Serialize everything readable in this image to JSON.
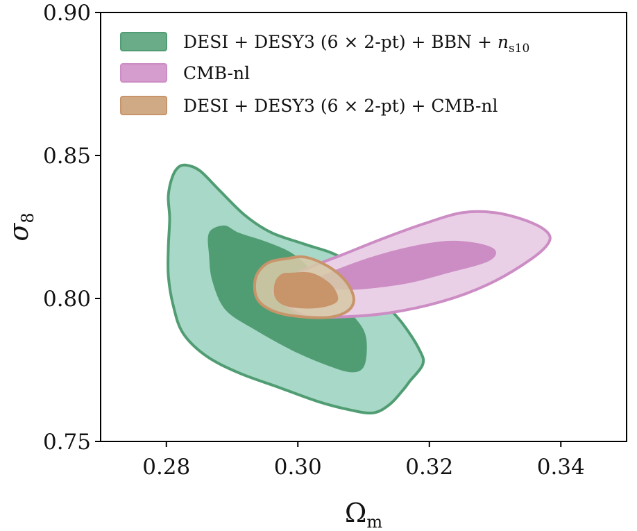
{
  "chart_data": {
    "type": "contour",
    "xlabel": "Ωm",
    "ylabel": "σ8",
    "xlim": [
      0.27,
      0.35
    ],
    "ylim": [
      0.75,
      0.9
    ],
    "xticks": [
      "0.28",
      "0.30",
      "0.32",
      "0.34"
    ],
    "yticks": [
      "0.75",
      "0.80",
      "0.85",
      "0.90"
    ],
    "legend_position": "upper-left",
    "series": [
      {
        "name": "DESI + DESY3 (6 × 2-pt) + BBN + ns10",
        "legend_main": "DESI + DESY3 (6 × 2-pt) + BBN + ",
        "legend_math": "n",
        "legend_sub": "s10",
        "color": "#519d73",
        "inner_color": "#519d73",
        "outer_fill": "#a8d8c8",
        "stroke": "#519d73",
        "contours": {
          "outer": [
            [
              0.2833,
              0.8465
            ],
            [
              0.2852,
              0.8445
            ],
            [
              0.288,
              0.838
            ],
            [
              0.292,
              0.829
            ],
            [
              0.296,
              0.823
            ],
            [
              0.301,
              0.819
            ],
            [
              0.306,
              0.815
            ],
            [
              0.31,
              0.808
            ],
            [
              0.313,
              0.799
            ],
            [
              0.316,
              0.791
            ],
            [
              0.3185,
              0.782
            ],
            [
              0.319,
              0.777
            ],
            [
              0.317,
              0.771
            ],
            [
              0.316,
              0.768
            ],
            [
              0.314,
              0.763
            ],
            [
              0.3115,
              0.76
            ],
            [
              0.308,
              0.761
            ],
            [
              0.303,
              0.764
            ],
            [
              0.297,
              0.769
            ],
            [
              0.291,
              0.774
            ],
            [
              0.286,
              0.78
            ],
            [
              0.2825,
              0.788
            ],
            [
              0.281,
              0.798
            ],
            [
              0.2803,
              0.808
            ],
            [
              0.2803,
              0.818
            ],
            [
              0.2805,
              0.828
            ],
            [
              0.2803,
              0.836
            ],
            [
              0.281,
              0.843
            ],
            [
              0.282,
              0.8462
            ]
          ],
          "inner": [
            [
              0.2888,
              0.8255
            ],
            [
              0.291,
              0.823
            ],
            [
              0.295,
              0.82
            ],
            [
              0.299,
              0.816
            ],
            [
              0.302,
              0.81
            ],
            [
              0.305,
              0.802
            ],
            [
              0.308,
              0.795
            ],
            [
              0.31,
              0.789
            ],
            [
              0.3105,
              0.783
            ],
            [
              0.31,
              0.776
            ],
            [
              0.308,
              0.7742
            ],
            [
              0.304,
              0.777
            ],
            [
              0.299,
              0.782
            ],
            [
              0.2935,
              0.789
            ],
            [
              0.289,
              0.796
            ],
            [
              0.287,
              0.806
            ],
            [
              0.2865,
              0.815
            ],
            [
              0.2865,
              0.823
            ]
          ]
        }
      },
      {
        "name": "CMB-nl",
        "legend_main": "CMB-nl",
        "color": "#cc8cc4",
        "inner_color": "#cc8cc4",
        "outer_fill": "#ead0e6",
        "stroke": "#cc8cc4",
        "contours": {
          "outer": [
            [
              0.297,
              0.804
            ],
            [
              0.301,
              0.81
            ],
            [
              0.307,
              0.8155
            ],
            [
              0.313,
              0.821
            ],
            [
              0.319,
              0.826
            ],
            [
              0.325,
              0.83
            ],
            [
              0.33,
              0.83
            ],
            [
              0.335,
              0.827
            ],
            [
              0.338,
              0.823
            ],
            [
              0.338,
              0.819
            ],
            [
              0.335,
              0.813
            ],
            [
              0.329,
              0.805
            ],
            [
              0.322,
              0.799
            ],
            [
              0.314,
              0.795
            ],
            [
              0.306,
              0.7935
            ],
            [
              0.301,
              0.794
            ],
            [
              0.298,
              0.798
            ],
            [
              0.2963,
              0.802
            ]
          ],
          "inner": [
            [
              0.302,
              0.806
            ],
            [
              0.308,
              0.812
            ],
            [
              0.315,
              0.817
            ],
            [
              0.322,
              0.82
            ],
            [
              0.327,
              0.8195
            ],
            [
              0.33,
              0.817
            ],
            [
              0.329,
              0.813
            ],
            [
              0.323,
              0.809
            ],
            [
              0.316,
              0.805
            ],
            [
              0.308,
              0.803
            ],
            [
              0.303,
              0.804
            ]
          ]
        }
      },
      {
        "name": "DESI + DESY3 (6 × 2-pt) + CMB-nl",
        "legend_main": "DESI + DESY3 (6 × 2-pt) + CMB-nl",
        "color": "#c89b6e",
        "inner_color": "#c8946a",
        "outer_fill": "#d6c8a7",
        "outer_opacity": 0.88,
        "stroke": "#c8946a",
        "contours": {
          "outer": [
            [
              0.2985,
              0.814
            ],
            [
              0.301,
              0.8145
            ],
            [
              0.304,
              0.812
            ],
            [
              0.3065,
              0.808
            ],
            [
              0.308,
              0.8035
            ],
            [
              0.3085,
              0.799
            ],
            [
              0.3075,
              0.7955
            ],
            [
              0.305,
              0.7935
            ],
            [
              0.301,
              0.7935
            ],
            [
              0.297,
              0.795
            ],
            [
              0.2945,
              0.798
            ],
            [
              0.2935,
              0.802
            ],
            [
              0.2937,
              0.808
            ],
            [
              0.2955,
              0.8125
            ]
          ],
          "inner": [
            [
              0.299,
              0.809
            ],
            [
              0.302,
              0.809
            ],
            [
              0.3045,
              0.806
            ],
            [
              0.3058,
              0.8025
            ],
            [
              0.306,
              0.799
            ],
            [
              0.304,
              0.797
            ],
            [
              0.301,
              0.7965
            ],
            [
              0.298,
              0.7975
            ],
            [
              0.2965,
              0.8005
            ],
            [
              0.2965,
              0.8055
            ],
            [
              0.2975,
              0.8085
            ]
          ]
        }
      }
    ]
  }
}
